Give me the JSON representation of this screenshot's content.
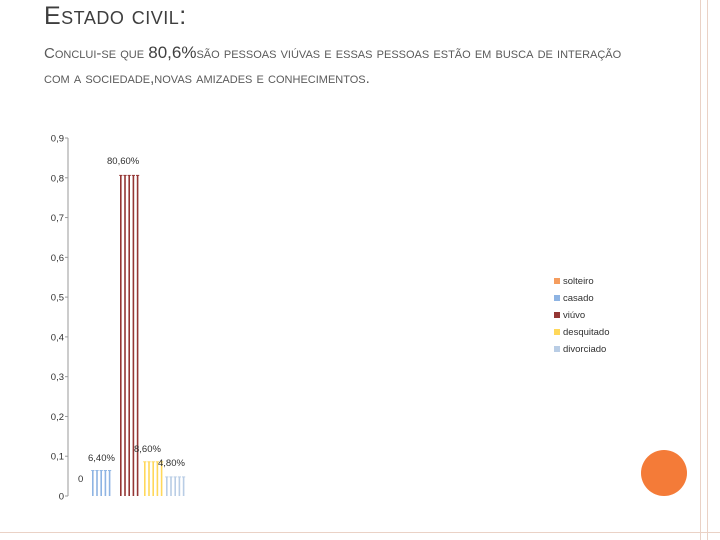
{
  "slide": {
    "title": "Estado civil:",
    "body_intro": "Conclui-se que ",
    "body_value": "80,6%",
    "body_rest": "são pessoas viúvas e essas pessoas estão em busca de interação com a sociedade,novas amizades e conhecimentos."
  },
  "colors": {
    "accent_circle": "#f47b38",
    "decor_lines": "#ead2c6"
  },
  "chart_data": {
    "type": "bar",
    "title": "",
    "xlabel": "",
    "ylabel": "",
    "ylim": [
      0,
      0.9
    ],
    "y_ticks": [
      "0",
      "0,1",
      "0,2",
      "0,3",
      "0,4",
      "0,5",
      "0,6",
      "0,7",
      "0,8",
      "0,9"
    ],
    "grid": false,
    "legend_position": "right",
    "bars_per_series": 5,
    "series": [
      {
        "name": "solteiro",
        "color": "#f59d5e",
        "value": 0.0,
        "label": "0"
      },
      {
        "name": "casado",
        "color": "#8eb4e3",
        "value": 0.064,
        "label": "6,40%"
      },
      {
        "name": "viúvo",
        "color": "#943634",
        "value": 0.806,
        "label": "80,60%"
      },
      {
        "name": "desquitado",
        "color": "#ffd85a",
        "value": 0.086,
        "label": "8,60%"
      },
      {
        "name": "divorciado",
        "color": "#b9cde5",
        "value": 0.048,
        "label": "4,80%"
      }
    ]
  }
}
